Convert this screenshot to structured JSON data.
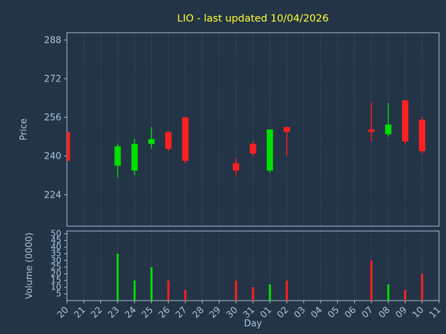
{
  "chart_data": {
    "type": "candlestick",
    "title": "LIO - last updated 10/04/2026",
    "xlabel": "Day",
    "ylabel_price": "Price",
    "ylabel_volume": "Volume (0000)",
    "x_labels": [
      "20",
      "21",
      "22",
      "23",
      "24",
      "25",
      "26",
      "27",
      "28",
      "29",
      "30",
      "31",
      "01",
      "02",
      "03",
      "04",
      "05",
      "06",
      "07",
      "08",
      "09",
      "10",
      "11"
    ],
    "price_ticks": [
      224,
      240,
      256,
      272,
      288
    ],
    "price_range": [
      211,
      291
    ],
    "volume_ticks": [
      5,
      10,
      15,
      20,
      25,
      30,
      35,
      40,
      45,
      50
    ],
    "volume_range": [
      0,
      52
    ],
    "legend": "none",
    "grid": "vertical-dotted",
    "colors": {
      "up": "#00e000",
      "down": "#ff2020",
      "background": "#243447",
      "axis": "#a8c4dc",
      "title": "#ffff33",
      "grid": "#c8c8c8"
    },
    "candles": [
      {
        "day": "20",
        "open": 250,
        "high": 250,
        "low": 238,
        "close": 238
      },
      {
        "day": "23",
        "open": 236,
        "high": 245,
        "low": 231,
        "close": 244
      },
      {
        "day": "24",
        "open": 234,
        "high": 247,
        "low": 232,
        "close": 245
      },
      {
        "day": "25",
        "open": 245,
        "high": 252,
        "low": 243,
        "close": 247
      },
      {
        "day": "26",
        "open": 250,
        "high": 250,
        "low": 242,
        "close": 243
      },
      {
        "day": "27",
        "open": 256,
        "high": 256,
        "low": 237,
        "close": 238
      },
      {
        "day": "30",
        "open": 237,
        "high": 239,
        "low": 232,
        "close": 234
      },
      {
        "day": "31",
        "open": 245,
        "high": 246,
        "low": 240,
        "close": 241
      },
      {
        "day": "01",
        "open": 234,
        "high": 251,
        "low": 233,
        "close": 251
      },
      {
        "day": "02",
        "open": 252,
        "high": 252,
        "low": 240,
        "close": 250
      },
      {
        "day": "07",
        "open": 251,
        "high": 262,
        "low": 246,
        "close": 250
      },
      {
        "day": "08",
        "open": 249,
        "high": 262,
        "low": 248,
        "close": 253
      },
      {
        "day": "09",
        "open": 263,
        "high": 263,
        "low": 245,
        "close": 246
      },
      {
        "day": "10",
        "open": 255,
        "high": 256,
        "low": 241,
        "close": 242
      }
    ],
    "volumes": [
      {
        "day": "23",
        "value": 35
      },
      {
        "day": "24",
        "value": 15
      },
      {
        "day": "25",
        "value": 25
      },
      {
        "day": "26",
        "value": 15
      },
      {
        "day": "27",
        "value": 8
      },
      {
        "day": "30",
        "value": 15
      },
      {
        "day": "31",
        "value": 10
      },
      {
        "day": "01",
        "value": 12
      },
      {
        "day": "02",
        "value": 15
      },
      {
        "day": "07",
        "value": 30
      },
      {
        "day": "08",
        "value": 12
      },
      {
        "day": "09",
        "value": 8
      },
      {
        "day": "10",
        "value": 20
      }
    ]
  }
}
